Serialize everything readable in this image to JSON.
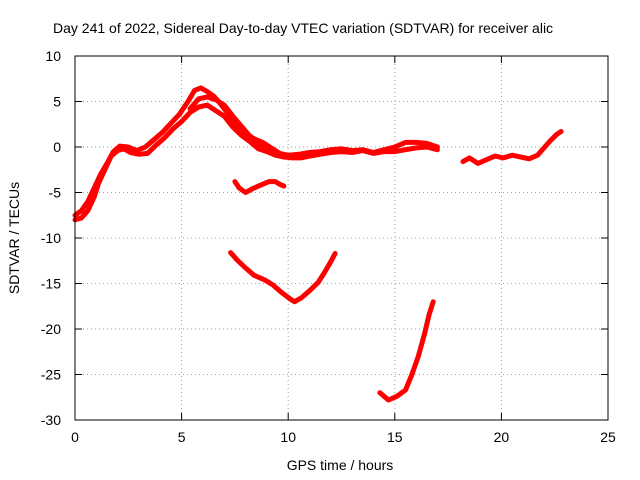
{
  "chart_data": {
    "type": "line",
    "title": "Day 241 of 2022, Sidereal Day-to-day VTEC variation (SDTVAR) for receiver alic",
    "xlabel": "GPS time / hours",
    "ylabel": "SDTVAR / TECUs",
    "xlim": [
      0,
      25
    ],
    "ylim": [
      -30,
      10
    ],
    "xticks": [
      0,
      5,
      10,
      15,
      20,
      25
    ],
    "yticks": [
      -30,
      -25,
      -20,
      -15,
      -10,
      -5,
      0,
      5,
      10
    ],
    "grid": true,
    "series_color": "#ff0000",
    "series": [
      {
        "name": "main-lower",
        "points": [
          [
            0,
            -8
          ],
          [
            0.3,
            -7.8
          ],
          [
            0.6,
            -7
          ],
          [
            0.9,
            -5.5
          ],
          [
            1.1,
            -4
          ],
          [
            1.4,
            -2.5
          ],
          [
            1.7,
            -1
          ],
          [
            2.0,
            -0.4
          ],
          [
            2.3,
            -0.2
          ],
          [
            2.6,
            -0.6
          ],
          [
            3.0,
            -0.8
          ],
          [
            3.4,
            -0.7
          ],
          [
            3.8,
            0.2
          ],
          [
            4.2,
            1
          ],
          [
            4.6,
            2
          ],
          [
            5.0,
            2.8
          ],
          [
            5.4,
            3.8
          ],
          [
            5.8,
            4.4
          ],
          [
            6.2,
            4.6
          ],
          [
            6.6,
            4
          ],
          [
            7.0,
            3.4
          ],
          [
            7.4,
            2.2
          ],
          [
            7.8,
            1.3
          ],
          [
            8.2,
            0.6
          ],
          [
            8.6,
            -0.2
          ],
          [
            9.0,
            -0.5
          ],
          [
            9.4,
            -0.9
          ],
          [
            9.8,
            -1.1
          ],
          [
            10.2,
            -1.2
          ],
          [
            10.6,
            -1.2
          ],
          [
            11.0,
            -1.0
          ],
          [
            11.5,
            -0.8
          ],
          [
            12.0,
            -0.6
          ],
          [
            12.5,
            -0.5
          ],
          [
            13.0,
            -0.6
          ],
          [
            13.5,
            -0.4
          ],
          [
            14.0,
            -0.7
          ],
          [
            14.5,
            -0.5
          ],
          [
            15.0,
            -0.5
          ],
          [
            15.5,
            -0.3
          ],
          [
            16.0,
            -0.1
          ],
          [
            16.5,
            0
          ],
          [
            17.0,
            -0.3
          ]
        ]
      },
      {
        "name": "main-upper",
        "points": [
          [
            0,
            -7.5
          ],
          [
            0.3,
            -7
          ],
          [
            0.6,
            -6
          ],
          [
            0.9,
            -4.5
          ],
          [
            1.2,
            -3
          ],
          [
            1.5,
            -1.8
          ],
          [
            1.8,
            -0.5
          ],
          [
            2.1,
            0.1
          ],
          [
            2.5,
            0
          ],
          [
            2.9,
            -0.4
          ],
          [
            3.3,
            0
          ],
          [
            3.7,
            0.8
          ],
          [
            4.1,
            1.6
          ],
          [
            4.5,
            2.6
          ],
          [
            4.9,
            3.6
          ],
          [
            5.3,
            5
          ],
          [
            5.6,
            6.2
          ],
          [
            5.9,
            6.5
          ],
          [
            6.2,
            6.1
          ],
          [
            6.5,
            5.6
          ],
          [
            6.8,
            4.8
          ],
          [
            7.2,
            3.6
          ],
          [
            7.6,
            2.4
          ],
          [
            8.0,
            1.5
          ],
          [
            8.4,
            0.9
          ],
          [
            8.8,
            0.5
          ],
          [
            9.2,
            -0.1
          ],
          [
            9.6,
            -0.7
          ],
          [
            10.0,
            -0.9
          ],
          [
            10.5,
            -0.8
          ],
          [
            11.0,
            -0.6
          ],
          [
            11.5,
            -0.5
          ],
          [
            12.0,
            -0.3
          ],
          [
            12.5,
            -0.2
          ],
          [
            13.0,
            -0.4
          ],
          [
            13.5,
            -0.3
          ],
          [
            14.0,
            -0.6
          ],
          [
            14.5,
            -0.3
          ],
          [
            15.0,
            0
          ],
          [
            15.5,
            0.5
          ],
          [
            16.0,
            0.5
          ],
          [
            16.5,
            0.4
          ],
          [
            17.0,
            0
          ]
        ]
      },
      {
        "name": "main-middle",
        "points": [
          [
            5.4,
            4.2
          ],
          [
            5.8,
            5.3
          ],
          [
            6.2,
            5.5
          ],
          [
            6.6,
            5.2
          ],
          [
            7.0,
            4.6
          ],
          [
            7.4,
            3.4
          ],
          [
            7.8,
            2.3
          ],
          [
            8.2,
            1.2
          ],
          [
            8.6,
            0.3
          ],
          [
            9.0,
            -0.4
          ],
          [
            9.4,
            -0.6
          ]
        ]
      },
      {
        "name": "late-segment",
        "points": [
          [
            18.2,
            -1.6
          ],
          [
            18.5,
            -1.2
          ],
          [
            18.9,
            -1.8
          ],
          [
            19.3,
            -1.4
          ],
          [
            19.7,
            -1.0
          ],
          [
            20.1,
            -1.2
          ],
          [
            20.5,
            -0.9
          ],
          [
            20.9,
            -1.1
          ],
          [
            21.3,
            -1.3
          ],
          [
            21.7,
            -0.9
          ],
          [
            22.0,
            -0.1
          ],
          [
            22.3,
            0.7
          ],
          [
            22.6,
            1.4
          ],
          [
            22.8,
            1.7
          ]
        ]
      },
      {
        "name": "arc-minus4",
        "points": [
          [
            7.5,
            -3.8
          ],
          [
            7.7,
            -4.5
          ],
          [
            8.0,
            -5
          ],
          [
            8.3,
            -4.6
          ],
          [
            8.7,
            -4.2
          ],
          [
            9.1,
            -3.8
          ],
          [
            9.4,
            -3.8
          ],
          [
            9.6,
            -4.1
          ],
          [
            9.8,
            -4.3
          ]
        ]
      },
      {
        "name": "arc-minus15",
        "points": [
          [
            7.3,
            -11.6
          ],
          [
            7.6,
            -12.4
          ],
          [
            8.0,
            -13.3
          ],
          [
            8.4,
            -14.1
          ],
          [
            8.9,
            -14.6
          ],
          [
            9.3,
            -15.2
          ],
          [
            9.7,
            -16
          ],
          [
            10.1,
            -16.7
          ],
          [
            10.3,
            -17
          ],
          [
            10.6,
            -16.6
          ],
          [
            11.0,
            -15.8
          ],
          [
            11.4,
            -14.9
          ],
          [
            11.7,
            -13.8
          ],
          [
            12.0,
            -12.6
          ],
          [
            12.2,
            -11.7
          ]
        ]
      },
      {
        "name": "arc-minus27",
        "points": [
          [
            14.3,
            -27
          ],
          [
            14.7,
            -27.8
          ],
          [
            15.1,
            -27.4
          ],
          [
            15.5,
            -26.7
          ],
          [
            15.8,
            -25
          ],
          [
            16.1,
            -23
          ],
          [
            16.4,
            -20.5
          ],
          [
            16.6,
            -18.5
          ],
          [
            16.8,
            -17
          ]
        ]
      }
    ]
  }
}
